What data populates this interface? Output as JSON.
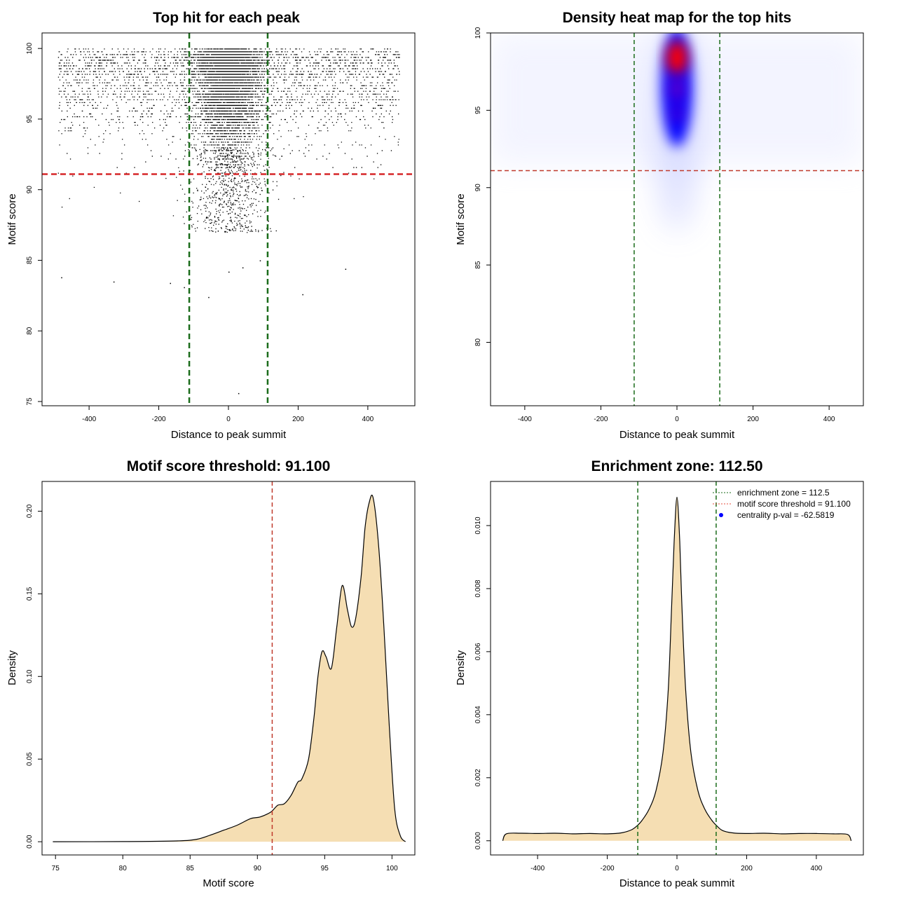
{
  "chart_data": [
    {
      "type": "scatter",
      "title": "Top hit for each peak",
      "xlabel": "Distance to peak summit",
      "ylabel": "Motif score",
      "xlim": [
        -535,
        535
      ],
      "ylim": [
        74.7,
        101.1
      ],
      "xticks": [
        "-400",
        "-200",
        "0",
        "200",
        "400"
      ],
      "yticks": [
        "75",
        "80",
        "85",
        "90",
        "95",
        "100"
      ],
      "hlines": [
        {
          "y": 91.1,
          "color": "#d62728",
          "style": "dashed"
        }
      ],
      "vlines": [
        {
          "x": -112.5,
          "color": "#1a6b1a",
          "style": "dashed"
        },
        {
          "x": 112.5,
          "color": "#1a6b1a",
          "style": "dashed"
        }
      ],
      "outliers": [
        {
          "x": -480,
          "y": 83.8
        },
        {
          "x": -330,
          "y": 83.5
        },
        {
          "x": -168,
          "y": 83.4
        },
        {
          "x": -128,
          "y": 83.1
        },
        {
          "x": -58,
          "y": 82.4
        },
        {
          "x": 212,
          "y": 82.6
        },
        {
          "x": 28,
          "y": 75.6
        },
        {
          "x": 0,
          "y": 84.2
        },
        {
          "x": 335,
          "y": 84.4
        },
        {
          "x": 90,
          "y": 85.0
        },
        {
          "x": 40,
          "y": 84.5
        }
      ]
    },
    {
      "type": "heatmap",
      "title": "Density heat map for the top hits",
      "xlabel": "Distance to peak summit",
      "ylabel": "Motif score",
      "xlim": [
        -490,
        490
      ],
      "ylim": [
        75.9,
        100.0
      ],
      "xticks": [
        "-400",
        "-200",
        "0",
        "200",
        "400"
      ],
      "yticks": [
        "80",
        "85",
        "90",
        "95",
        "100"
      ],
      "hlines": [
        {
          "y": 91.1,
          "color": "#c0392b",
          "style": "dashed"
        }
      ],
      "vlines": [
        {
          "x": -112.5,
          "color": "#1a6b1a",
          "style": "dashed"
        },
        {
          "x": 112.5,
          "color": "#1a6b1a",
          "style": "dashed"
        }
      ],
      "hotspots": [
        {
          "x": 0,
          "y": 98.4,
          "intensity": 1.0
        },
        {
          "x": 0,
          "y": 96.4,
          "intensity": 0.65
        },
        {
          "x": 0,
          "y": 94.8,
          "intensity": 0.45
        }
      ]
    },
    {
      "type": "area",
      "title": "Motif score threshold: 91.100",
      "xlabel": "Motif score",
      "ylabel": "Density",
      "xlim": [
        74.0,
        101.7
      ],
      "ylim": [
        -0.008,
        0.218
      ],
      "xticks": [
        "75",
        "80",
        "85",
        "90",
        "95",
        "100"
      ],
      "yticks": [
        "0.00",
        "0.05",
        "0.10",
        "0.15",
        "0.20"
      ],
      "fill": "#f5deb3",
      "vlines": [
        {
          "x": 91.1,
          "color": "#c0392b",
          "style": "dashed"
        }
      ],
      "x": [
        74.8,
        80.0,
        84.0,
        85.5,
        86.5,
        87.5,
        88.5,
        89.5,
        90.2,
        91.0,
        91.5,
        92.0,
        92.5,
        93.0,
        93.3,
        93.8,
        94.2,
        94.5,
        94.8,
        95.1,
        95.5,
        95.9,
        96.3,
        96.7,
        97.0,
        97.3,
        97.7,
        98.0,
        98.3,
        98.6,
        99.0,
        99.4,
        99.8,
        100.2,
        100.6,
        101.0
      ],
      "y": [
        0.0,
        0.0001,
        0.0005,
        0.0015,
        0.004,
        0.007,
        0.01,
        0.014,
        0.015,
        0.018,
        0.022,
        0.023,
        0.028,
        0.036,
        0.038,
        0.05,
        0.075,
        0.1,
        0.115,
        0.112,
        0.105,
        0.13,
        0.155,
        0.14,
        0.13,
        0.135,
        0.16,
        0.19,
        0.205,
        0.208,
        0.18,
        0.13,
        0.07,
        0.02,
        0.004,
        0.0
      ]
    },
    {
      "type": "area",
      "title": "Enrichment zone: 112.50",
      "xlabel": "Distance to peak summit",
      "ylabel": "Density",
      "xlim": [
        -535,
        535
      ],
      "ylim": [
        -0.00045,
        0.0114
      ],
      "xticks": [
        "-400",
        "-200",
        "0",
        "200",
        "400"
      ],
      "yticks": [
        "0.000",
        "0.002",
        "0.004",
        "0.006",
        "0.008",
        "0.010"
      ],
      "fill": "#f5deb3",
      "vlines": [
        {
          "x": -112.5,
          "color": "#1a6b1a",
          "style": "dashed"
        },
        {
          "x": 112.5,
          "color": "#1a6b1a",
          "style": "dashed"
        }
      ],
      "x": [
        -500,
        -490,
        -450,
        -400,
        -350,
        -300,
        -250,
        -200,
        -160,
        -130,
        -112,
        -100,
        -80,
        -60,
        -40,
        -25,
        -15,
        -8,
        0,
        8,
        15,
        25,
        40,
        60,
        80,
        100,
        112,
        130,
        160,
        200,
        250,
        300,
        350,
        400,
        450,
        490,
        500
      ],
      "y": [
        0.0,
        0.00022,
        0.00024,
        0.00023,
        0.00024,
        0.00022,
        0.00023,
        0.00022,
        0.00025,
        0.00035,
        0.0005,
        0.00065,
        0.001,
        0.0016,
        0.0028,
        0.0048,
        0.0075,
        0.0095,
        0.0109,
        0.0095,
        0.0072,
        0.0048,
        0.0028,
        0.0016,
        0.001,
        0.00065,
        0.0005,
        0.00033,
        0.00025,
        0.00023,
        0.00024,
        0.00022,
        0.00023,
        0.00023,
        0.00022,
        0.0002,
        0.0
      ],
      "legend": [
        {
          "label": "enrichment zone = 112.5",
          "color": "#1a6b1a",
          "marker": "dotted-line"
        },
        {
          "label": "motif score threshold = 91.100",
          "color": "#e74c3c",
          "marker": "dotted-line"
        },
        {
          "label": "centrality p-val = -62.5819",
          "color": "#0000ff",
          "marker": "dot"
        }
      ]
    }
  ]
}
